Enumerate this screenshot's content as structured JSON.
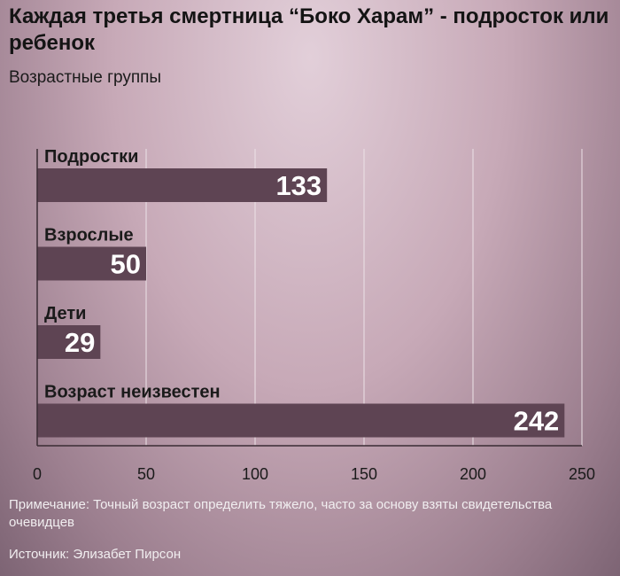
{
  "header": {
    "title": "Каждая третья смертница “Боко Харам” - подросток или ребенок",
    "subtitle": "Возрастные группы"
  },
  "footer": {
    "note": "Примечание: Точный возраст определить тяжело, часто за основу взяты свидетельства очевидцев",
    "source": "Источник: Элизабет Пирсон"
  },
  "colors": {
    "bar": "#5e4453",
    "grid": "#ece2e7",
    "axis": "#3a2c34"
  },
  "chart_data": {
    "type": "bar",
    "orientation": "horizontal",
    "title": "Каждая третья смертница “Боко Харам” - подросток или ребенок",
    "subtitle": "Возрастные группы",
    "categories": [
      "Подростки",
      "Взрослые",
      "Дети",
      "Возраст неизвестен"
    ],
    "values": [
      133,
      50,
      29,
      242
    ],
    "xlim": [
      0,
      250
    ],
    "xticks": [
      0,
      50,
      100,
      150,
      200,
      250
    ],
    "grid": true,
    "data_labels": true
  }
}
